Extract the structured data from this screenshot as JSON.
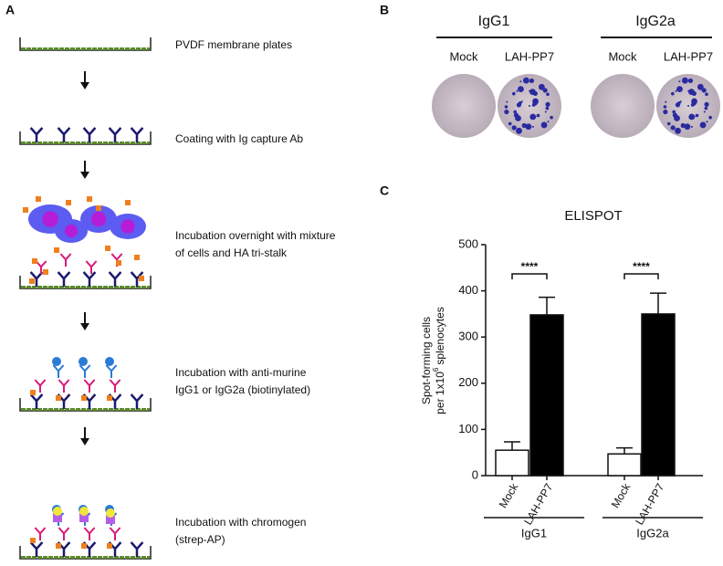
{
  "panel_labels": [
    "A",
    "B",
    "C"
  ],
  "panel_a": {
    "steps": [
      [
        "PVDF membrane plates"
      ],
      [
        "Coating with Ig capture Ab"
      ],
      [
        "Incubation overnight with mixture",
        "of cells and HA tri-stalk"
      ],
      [
        "Incubation with anti-murine",
        "IgG1 or IgG2a (biotinylated)"
      ],
      [
        "Incubation with chromogen",
        "(strep-AP)"
      ]
    ]
  },
  "panel_b": {
    "groups": [
      {
        "name": "IgG1",
        "wells": [
          "Mock",
          "LAH-PP7"
        ]
      },
      {
        "name": "IgG2a",
        "wells": [
          "Mock",
          "LAH-PP7"
        ]
      }
    ]
  },
  "chart_data": {
    "type": "bar",
    "title": "ELISPOT",
    "y_label": [
      "Spot-forming cells",
      "per 1x10",
      "6",
      "splenocytes"
    ],
    "categories": [
      "Mock",
      "LAH-PP7",
      "Mock",
      "LAH-PP7"
    ],
    "groups": [
      "IgG1",
      "IgG2a"
    ],
    "values": [
      55,
      348,
      47,
      350
    ],
    "errors": [
      18,
      38,
      13,
      45
    ],
    "colors": [
      "#ffffff",
      "#000000",
      "#ffffff",
      "#000000"
    ],
    "annotations": [
      "****",
      "****"
    ],
    "ylim": [
      0,
      500
    ],
    "yticks": [
      0,
      100,
      200,
      300,
      400,
      500
    ]
  }
}
